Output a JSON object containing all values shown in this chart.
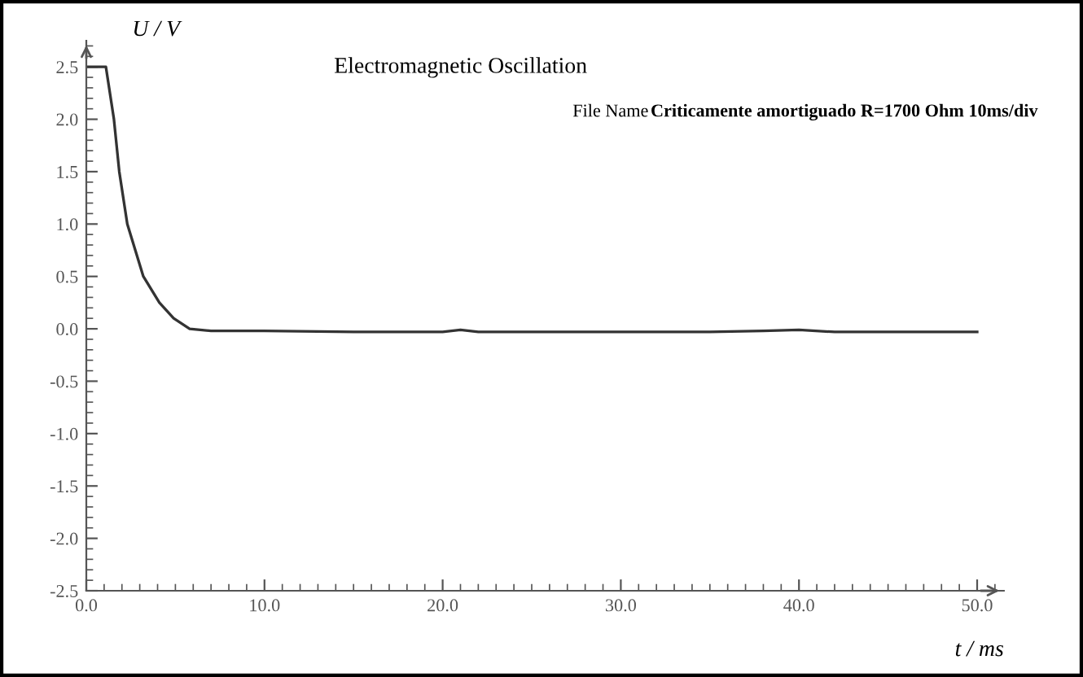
{
  "chart_data": {
    "type": "line",
    "title": "Electromagnetic Oscillation",
    "xlabel": "t / ms",
    "ylabel": "U / V",
    "annotations": [
      "File Name",
      "Criticamente amortiguado R=1700 Ohm 10ms/div"
    ],
    "series": [
      {
        "color": "#333333",
        "x": [
          0,
          1.1,
          1.55,
          1.85,
          2.3,
          3.2,
          4.1,
          4.9,
          5.8,
          7,
          10,
          15,
          20,
          21,
          22,
          25,
          30,
          35,
          38,
          40,
          42,
          45,
          50
        ],
        "values": [
          2.5,
          2.5,
          2.0,
          1.5,
          1.0,
          0.5,
          0.25,
          0.1,
          0.0,
          -0.02,
          -0.02,
          -0.03,
          -0.03,
          -0.01,
          -0.03,
          -0.03,
          -0.03,
          -0.03,
          -0.02,
          -0.01,
          -0.03,
          -0.03,
          -0.03
        ]
      }
    ],
    "xlim": [
      0,
      51.5
    ],
    "ylim": [
      -2.5,
      2.75
    ],
    "xticks": [
      {
        "value": 0,
        "label": "0.0"
      },
      {
        "value": 10,
        "label": "10.0"
      },
      {
        "value": 20,
        "label": "20.0"
      },
      {
        "value": 30,
        "label": "30.0"
      },
      {
        "value": 40,
        "label": "40.0"
      },
      {
        "value": 50,
        "label": "50.0"
      }
    ],
    "yticks": [
      {
        "value": -2.5,
        "label": "-2.5"
      },
      {
        "value": -2,
        "label": "-2.0"
      },
      {
        "value": -1.5,
        "label": "-1.5"
      },
      {
        "value": -1,
        "label": "-1.0"
      },
      {
        "value": -0.5,
        "label": "-0.5"
      },
      {
        "value": 0,
        "label": "0.0"
      },
      {
        "value": 0.5,
        "label": "0.5"
      },
      {
        "value": 1,
        "label": "1.0"
      },
      {
        "value": 1.5,
        "label": "1.5"
      },
      {
        "value": 2,
        "label": "2.0"
      },
      {
        "value": 2.5,
        "label": "2.5"
      }
    ],
    "grid": false,
    "legend": false,
    "marker": "none",
    "line_style": "solid"
  }
}
